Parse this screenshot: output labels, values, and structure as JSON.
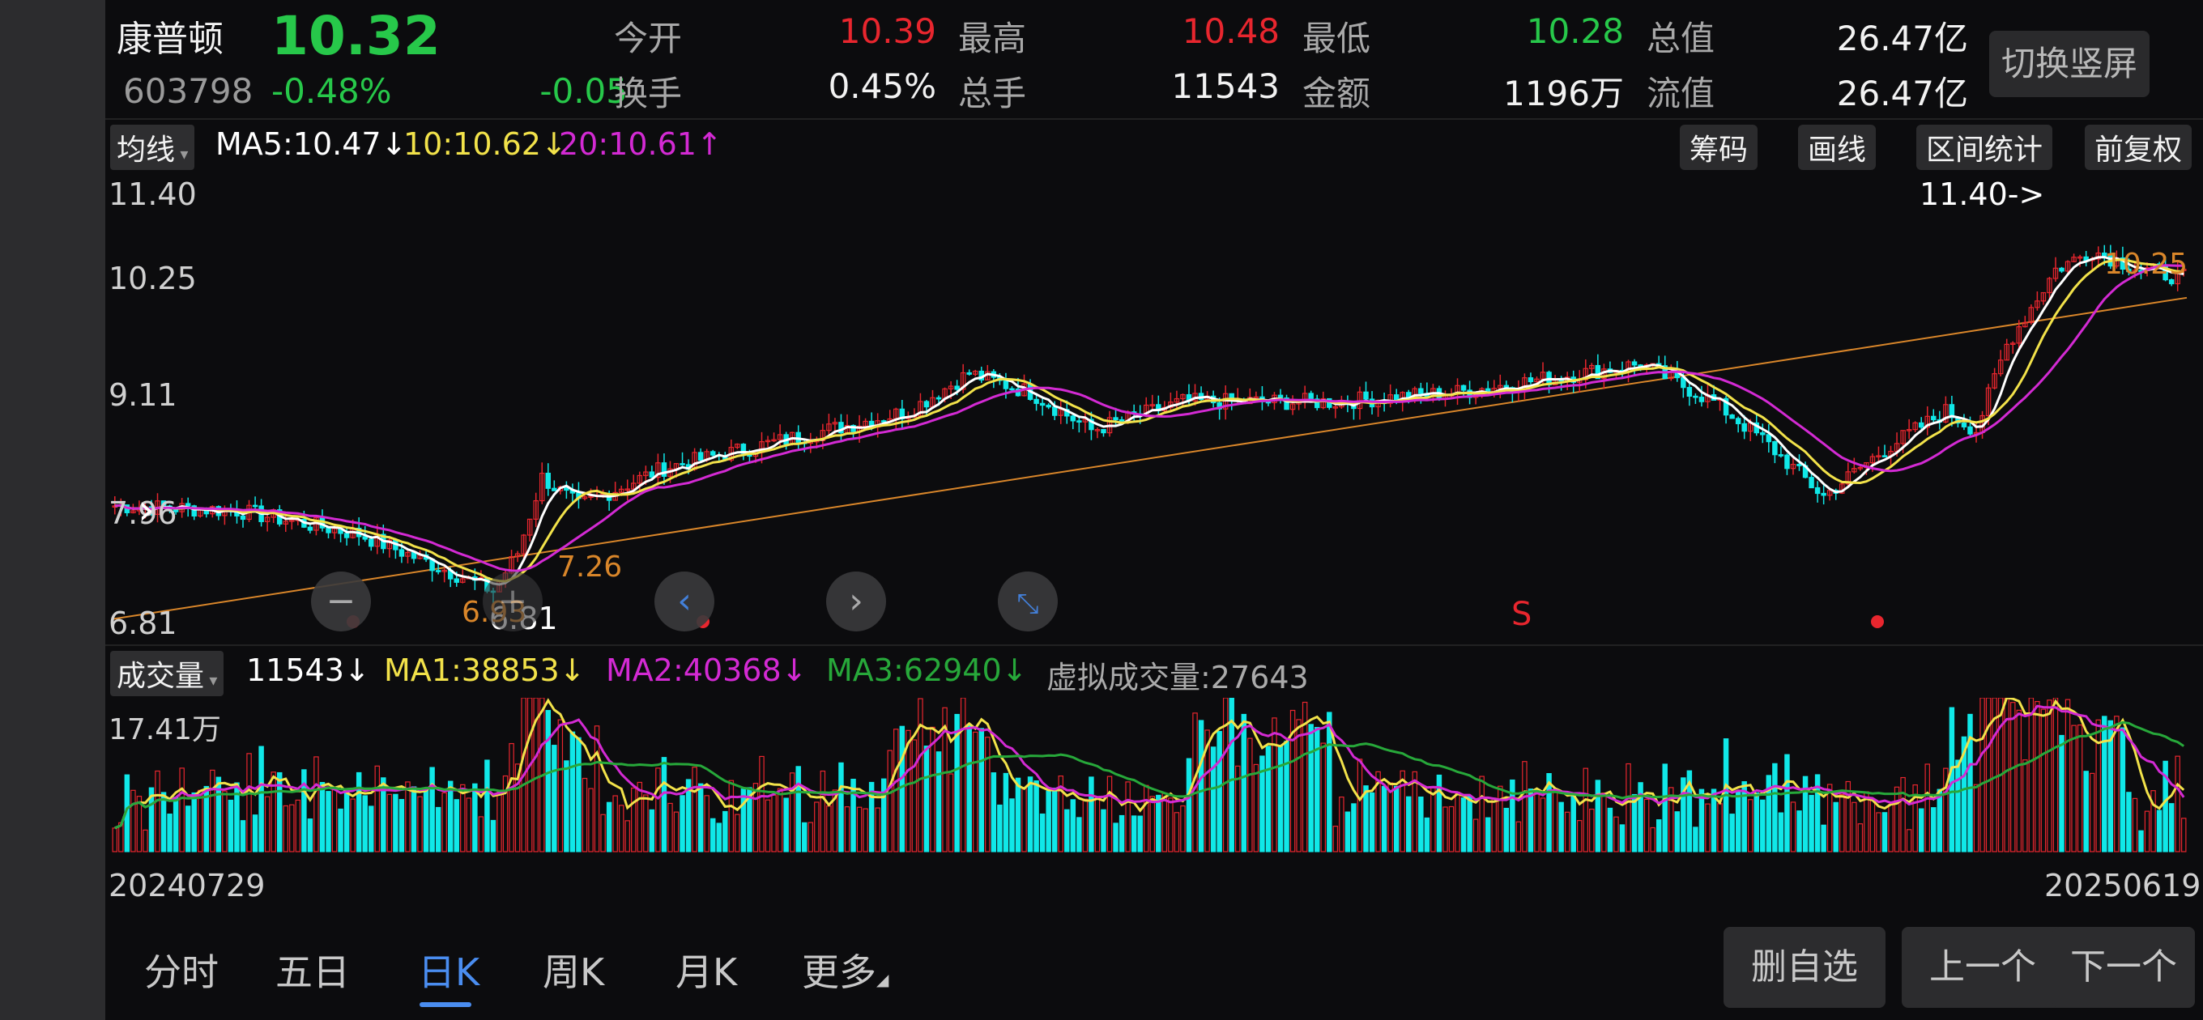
{
  "header": {
    "name": "康普顿",
    "price": "10.32",
    "code": "603798",
    "change_pct": "-0.48%",
    "change": "-0.05",
    "quotes": [
      {
        "label": "今开",
        "value": "10.39",
        "color": "red"
      },
      {
        "label": "最高",
        "value": "10.48",
        "color": "red"
      },
      {
        "label": "最低",
        "value": "10.28",
        "color": "green"
      },
      {
        "label": "总值",
        "value": "26.47亿",
        "color": "white"
      },
      {
        "label": "换手",
        "value": "0.45%",
        "color": "white"
      },
      {
        "label": "总手",
        "value": "11543",
        "color": "white"
      },
      {
        "label": "金额",
        "value": "1196万",
        "color": "white"
      },
      {
        "label": "流值",
        "value": "26.47亿",
        "color": "white"
      }
    ],
    "switch_label": "切换竖屏"
  },
  "kline": {
    "indicator_select": "均线",
    "ma5": "MA5:10.47",
    "ma10": "10:10.62",
    "ma20": "20:10.61",
    "ma5_arrow": "↓",
    "ma10_arrow": "↓",
    "ma20_arrow": "↑",
    "tools": [
      "筹码",
      "画线",
      "区间统计",
      "前复权"
    ],
    "y_labels": [
      "11.40",
      "10.25",
      "9.11",
      "7.96",
      "6.81"
    ],
    "max_marker": "11.40->",
    "low_marker": "6.81",
    "annotations": [
      "7.26",
      "6.93",
      "10.25"
    ],
    "signal": "S"
  },
  "volume": {
    "indicator_select": "成交量",
    "vol": "11543",
    "ma1": "MA1:38853",
    "ma2": "MA2:40368",
    "ma3": "MA3:62940",
    "arrow": "↓",
    "virtual": "虚拟成交量:27643",
    "y_max": "17.41万",
    "date_start": "20240729",
    "date_end": "20250619"
  },
  "tabs": [
    "分时",
    "五日",
    "日K",
    "周K",
    "月K",
    "更多"
  ],
  "active_tab": "日K",
  "buttons": {
    "remove_fav": "删自选",
    "prev": "上一个",
    "next": "下一个"
  },
  "colors": {
    "up": "#e8262e",
    "down": "#10e8e8",
    "ma5": "#ffffff",
    "ma10": "#f2e24a",
    "ma20": "#d32ad3",
    "price_green": "#27c84a",
    "trend_line": "#d9862a"
  },
  "icons": {
    "nav_left": "chevron-left-icon",
    "nav_right": "chevron-right-icon",
    "zoom_out": "minus-icon",
    "collapse": "collapse-icon"
  }
}
